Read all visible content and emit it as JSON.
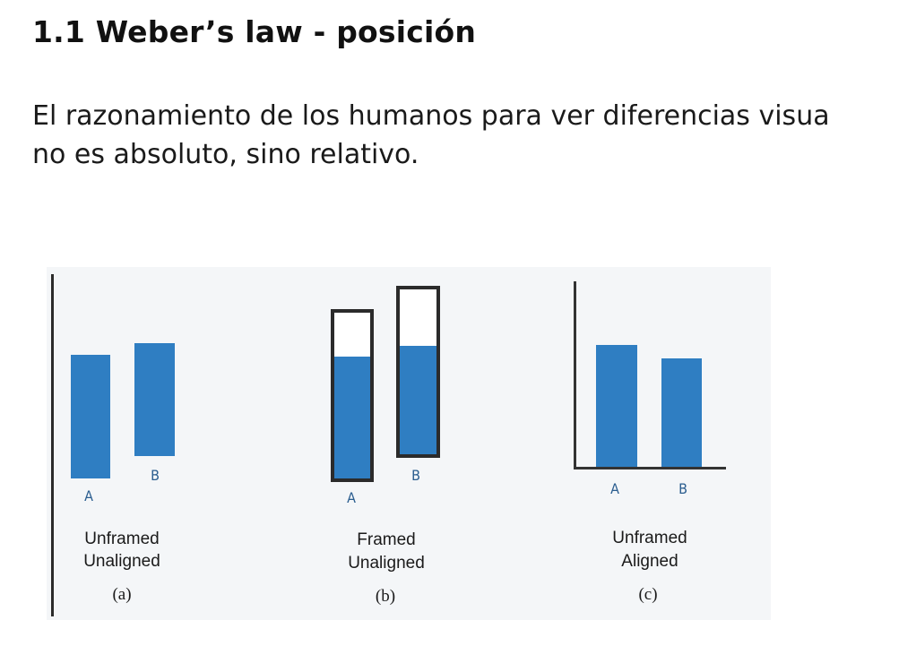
{
  "title": "1.1 Weber’s law - posición",
  "paragraph": {
    "line1": "El razonamiento de los humanos para ver diferencias visua",
    "line2": "no es absoluto, sino relativo."
  },
  "figure": {
    "colors": {
      "bar": "#2f7ec2",
      "frame": "#2b2b2b",
      "axis": "#333333",
      "label": "#2a5d8f",
      "caption": "#1a1a1a"
    },
    "panels": [
      {
        "id": "a",
        "bar_a_label": "A",
        "bar_b_label": "B",
        "caption_line1": "Unframed",
        "caption_line2": "Unaligned",
        "letter": "(a)"
      },
      {
        "id": "b",
        "bar_a_label": "A",
        "bar_b_label": "B",
        "caption_line1": "Framed",
        "caption_line2": "Unaligned",
        "letter": "(b)"
      },
      {
        "id": "c",
        "bar_a_label": "A",
        "bar_b_label": "B",
        "caption_line1": "Unframed",
        "caption_line2": "Aligned",
        "letter": "(c)"
      }
    ]
  }
}
